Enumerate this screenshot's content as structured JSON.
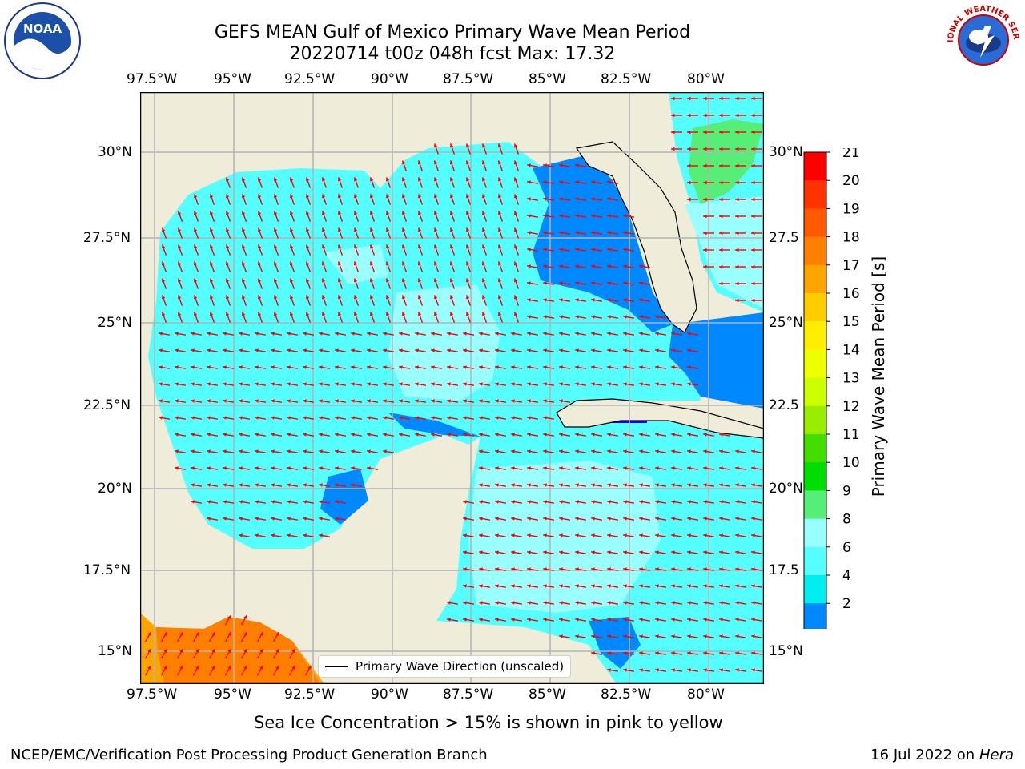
{
  "title": {
    "line1": "GEFS MEAN Gulf of Mexico Primary Wave Mean Period",
    "line2": "20220714 t00z 048h fcst   Max: 17.32"
  },
  "map": {
    "lon_ticks": [
      "97.5°W",
      "95°W",
      "92.5°W",
      "90°W",
      "87.5°W",
      "85°W",
      "82.5°W",
      "80°W"
    ],
    "lat_ticks_left": [
      "30°N",
      "27.5°N",
      "25°N",
      "22.5°N",
      "20°N",
      "17.5°N",
      "15°N"
    ],
    "lat_ticks_right": [
      "30°N",
      "27.5",
      "25°N",
      "22.5",
      "20°N",
      "17.5",
      "15°N"
    ],
    "legend_label": "Primary Wave Direction (unscaled)",
    "colors": {
      "land": "#efedd9",
      "arrow": "#ff0000",
      "grid": "#b4b4b4"
    }
  },
  "colorbar": {
    "label": "Primary Wave Mean Period [s]",
    "tick_labels": [
      "21",
      "20",
      "19",
      "18",
      "17",
      "16",
      "15",
      "14",
      "13",
      "12",
      "11",
      "10",
      "9",
      "8",
      "6",
      "4",
      "2"
    ],
    "colors_top_to_bottom": [
      "#ff0000",
      "#ff3300",
      "#ff5a00",
      "#ff8000",
      "#ffa500",
      "#ffcc00",
      "#ffee00",
      "#eeff00",
      "#ccff00",
      "#99ee00",
      "#44dd00",
      "#00dd00",
      "#55ee77",
      "#99ffff",
      "#55ffff",
      "#00eeee",
      "#0088ff"
    ],
    "extend_color": "#0000ee"
  },
  "footer": {
    "note": "Sea Ice Concentration > 15% is shown in pink to yellow",
    "left": "NCEP/EMC/Verification Post Processing Product Generation Branch",
    "right_date": "16 Jul 2022 on ",
    "right_machine": "Hera"
  },
  "logos": {
    "noara_text": "NOAA",
    "nws_text": "NATIONAL WEATHER SERVICE"
  }
}
